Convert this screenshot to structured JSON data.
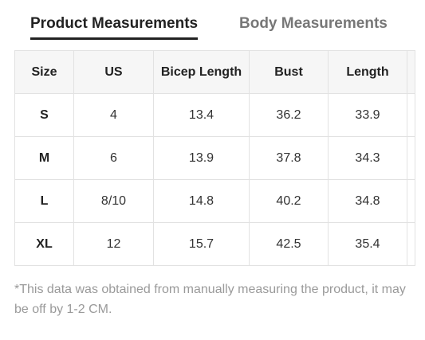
{
  "tabs": [
    "Product Measurements",
    "Body Measurements"
  ],
  "table": {
    "header": [
      "Size",
      "US",
      "Bicep Length",
      "Bust",
      "Length"
    ],
    "rows": [
      [
        "S",
        "4",
        "13.4",
        "36.2",
        "33.9"
      ],
      [
        "M",
        "6",
        "13.9",
        "37.8",
        "34.3"
      ],
      [
        "L",
        "8/10",
        "14.8",
        "40.2",
        "34.8"
      ],
      [
        "XL",
        "12",
        "15.7",
        "42.5",
        "35.4"
      ]
    ]
  },
  "note": "*This data was obtained from manually measuring the product, it may be off by 1-2 CM."
}
